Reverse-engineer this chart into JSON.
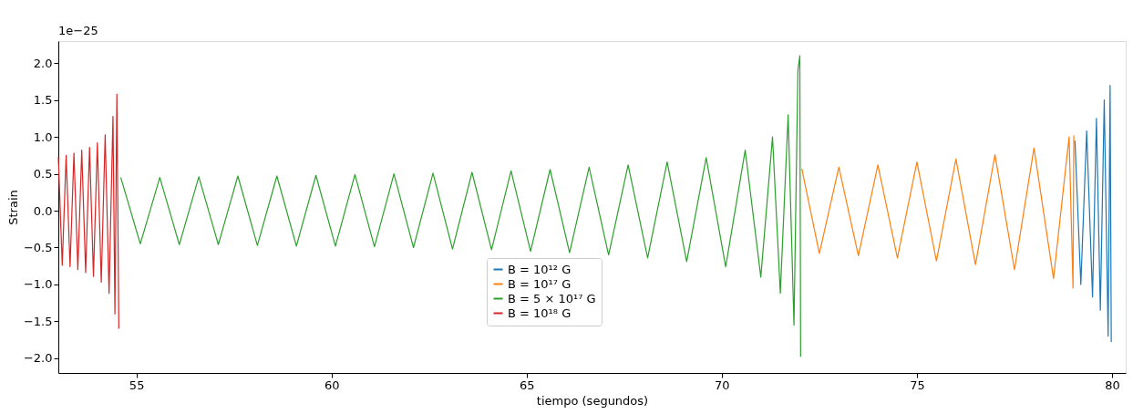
{
  "chart_data": {
    "type": "line",
    "xlabel": "tiempo (segundos)",
    "ylabel": "Strain",
    "annotations": [
      "1e−25"
    ],
    "xlim": [
      53,
      80.35
    ],
    "xticks": [
      55,
      60,
      65,
      70,
      75,
      80
    ],
    "ylim": [
      -2.2,
      2.3
    ],
    "yticks": [
      {
        "value": -2,
        "label": "−2.0"
      },
      {
        "value": -1.5,
        "label": "−1.5"
      },
      {
        "value": -1,
        "label": "−1.0"
      },
      {
        "value": -0.5,
        "label": "−0.5"
      },
      {
        "value": 0,
        "label": "0.0"
      },
      {
        "value": 0.5,
        "label": "0.5"
      },
      {
        "value": 1,
        "label": "1.0"
      },
      {
        "value": 1.5,
        "label": "1.5"
      },
      {
        "value": 2,
        "label": "2.0"
      }
    ],
    "grid": false,
    "legend": "bottom",
    "line_style": "solid",
    "series": [
      {
        "name": "B = 10¹² G",
        "color": "#1f77b4",
        "x": [
          79.05,
          79.2,
          79.35,
          79.5,
          79.6,
          79.7,
          79.8,
          79.9,
          79.95,
          79.98
        ],
        "values": [
          0.95,
          -1.0,
          1.08,
          -1.17,
          1.25,
          -1.35,
          1.5,
          -1.7,
          1.7,
          -1.78
        ]
      },
      {
        "name": "B = 10¹⁷ G",
        "color": "#ff7f0e",
        "x": [
          72.05,
          72.5,
          73.0,
          73.5,
          74.0,
          74.5,
          75.0,
          75.5,
          76.0,
          76.5,
          77.0,
          77.5,
          78.0,
          78.5,
          78.9,
          79.0,
          79.02
        ],
        "values": [
          0.57,
          -0.58,
          0.59,
          -0.61,
          0.62,
          -0.64,
          0.66,
          -0.68,
          0.7,
          -0.73,
          0.76,
          -0.8,
          0.85,
          -0.92,
          1.0,
          -1.05,
          1.02
        ]
      },
      {
        "name": "B = 5 × 10¹⁷ G",
        "color": "#2ca02c",
        "x": [
          54.6,
          55.1,
          55.6,
          56.1,
          56.6,
          57.1,
          57.6,
          58.1,
          58.6,
          59.1,
          59.6,
          60.1,
          60.6,
          61.1,
          61.6,
          62.1,
          62.6,
          63.1,
          63.6,
          64.1,
          64.6,
          65.1,
          65.6,
          66.1,
          66.6,
          67.1,
          67.6,
          68.1,
          68.6,
          69.1,
          69.6,
          70.1,
          70.6,
          71.0,
          71.3,
          71.5,
          71.7,
          71.85,
          71.95,
          72.0,
          72.02
        ],
        "values": [
          0.45,
          -0.45,
          0.45,
          -0.46,
          0.46,
          -0.46,
          0.47,
          -0.47,
          0.47,
          -0.48,
          0.48,
          -0.48,
          0.49,
          -0.49,
          0.5,
          -0.5,
          0.51,
          -0.52,
          0.52,
          -0.53,
          0.54,
          -0.55,
          0.56,
          -0.57,
          0.59,
          -0.6,
          0.62,
          -0.64,
          0.66,
          -0.69,
          0.72,
          -0.76,
          0.82,
          -0.9,
          1.0,
          -1.12,
          1.3,
          -1.55,
          1.9,
          2.1,
          -1.98
        ]
      },
      {
        "name": "B = 10¹⁸ G",
        "color": "#d62728",
        "x": [
          53.0,
          53.1,
          53.2,
          53.3,
          53.4,
          53.5,
          53.6,
          53.7,
          53.8,
          53.9,
          54.0,
          54.1,
          54.2,
          54.3,
          54.4,
          54.45,
          54.5,
          54.55
        ],
        "values": [
          0.73,
          -0.74,
          0.75,
          -0.76,
          0.78,
          -0.8,
          0.82,
          -0.84,
          0.86,
          -0.89,
          0.92,
          -0.97,
          1.03,
          -1.12,
          1.28,
          -1.4,
          1.58,
          -1.6
        ]
      }
    ]
  }
}
